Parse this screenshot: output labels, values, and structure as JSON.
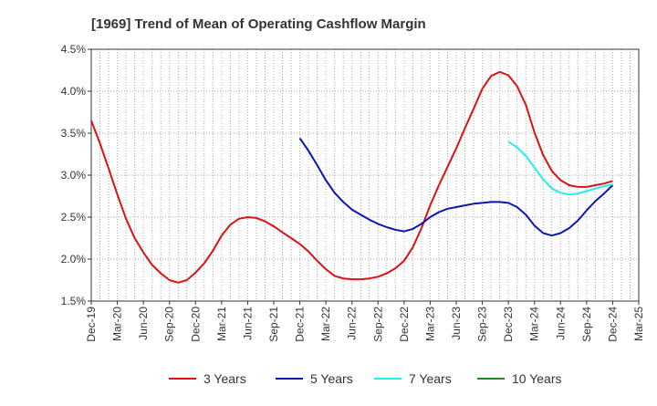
{
  "chart_data": {
    "type": "line",
    "title": "[1969]  Trend of Mean of Operating Cashflow Margin",
    "xlabel": "",
    "ylabel": "",
    "ylim": [
      1.5,
      4.5
    ],
    "y_ticks": [
      "1.5%",
      "2.0%",
      "2.5%",
      "3.0%",
      "3.5%",
      "4.0%",
      "4.5%"
    ],
    "x_ticks": [
      "Dec-19",
      "Mar-20",
      "Jun-20",
      "Sep-20",
      "Dec-20",
      "Mar-21",
      "Jun-21",
      "Sep-21",
      "Dec-21",
      "Mar-22",
      "Jun-22",
      "Sep-22",
      "Dec-22",
      "Mar-23",
      "Jun-23",
      "Sep-23",
      "Dec-23",
      "Mar-24",
      "Jun-24",
      "Sep-24",
      "Dec-24",
      "Mar-25"
    ],
    "grid": true,
    "legend_position": "bottom",
    "series": [
      {
        "name": "3 Years",
        "color": "#dd1111",
        "points": [
          [
            "Dec-19",
            3.65
          ],
          [
            "Jan-20",
            3.38
          ],
          [
            "Feb-20",
            3.08
          ],
          [
            "Mar-20",
            2.77
          ],
          [
            "Apr-20",
            2.48
          ],
          [
            "May-20",
            2.25
          ],
          [
            "Jun-20",
            2.08
          ],
          [
            "Jul-20",
            1.93
          ],
          [
            "Aug-20",
            1.83
          ],
          [
            "Sep-20",
            1.75
          ],
          [
            "Oct-20",
            1.72
          ],
          [
            "Nov-20",
            1.75
          ],
          [
            "Dec-20",
            1.84
          ],
          [
            "Jan-21",
            1.95
          ],
          [
            "Feb-21",
            2.1
          ],
          [
            "Mar-21",
            2.28
          ],
          [
            "Apr-21",
            2.41
          ],
          [
            "May-21",
            2.48
          ],
          [
            "Jun-21",
            2.5
          ],
          [
            "Jul-21",
            2.49
          ],
          [
            "Aug-21",
            2.45
          ],
          [
            "Sep-21",
            2.39
          ],
          [
            "Oct-21",
            2.32
          ],
          [
            "Nov-21",
            2.25
          ],
          [
            "Dec-21",
            2.18
          ],
          [
            "Jan-22",
            2.09
          ],
          [
            "Feb-22",
            1.98
          ],
          [
            "Mar-22",
            1.88
          ],
          [
            "Apr-22",
            1.8
          ],
          [
            "May-22",
            1.77
          ],
          [
            "Jun-22",
            1.76
          ],
          [
            "Jul-22",
            1.76
          ],
          [
            "Aug-22",
            1.77
          ],
          [
            "Sep-22",
            1.79
          ],
          [
            "Oct-22",
            1.83
          ],
          [
            "Nov-22",
            1.89
          ],
          [
            "Dec-22",
            1.98
          ],
          [
            "Jan-23",
            2.14
          ],
          [
            "Feb-23",
            2.37
          ],
          [
            "Mar-23",
            2.64
          ],
          [
            "Apr-23",
            2.88
          ],
          [
            "May-23",
            3.1
          ],
          [
            "Jun-23",
            3.32
          ],
          [
            "Jul-23",
            3.56
          ],
          [
            "Aug-23",
            3.79
          ],
          [
            "Sep-23",
            4.03
          ],
          [
            "Oct-23",
            4.18
          ],
          [
            "Nov-23",
            4.23
          ],
          [
            "Dec-23",
            4.19
          ],
          [
            "Jan-24",
            4.06
          ],
          [
            "Feb-24",
            3.84
          ],
          [
            "Mar-24",
            3.51
          ],
          [
            "Apr-24",
            3.24
          ],
          [
            "May-24",
            3.05
          ],
          [
            "Jun-24",
            2.94
          ],
          [
            "Jul-24",
            2.88
          ],
          [
            "Aug-24",
            2.86
          ],
          [
            "Sep-24",
            2.86
          ],
          [
            "Oct-24",
            2.88
          ],
          [
            "Nov-24",
            2.9
          ],
          [
            "Dec-24",
            2.93
          ]
        ]
      },
      {
        "name": "5 Years",
        "color": "#0a17b0",
        "points": [
          [
            "Dec-21",
            3.44
          ],
          [
            "Jan-22",
            3.29
          ],
          [
            "Feb-22",
            3.12
          ],
          [
            "Mar-22",
            2.94
          ],
          [
            "Apr-22",
            2.79
          ],
          [
            "May-22",
            2.68
          ],
          [
            "Jun-22",
            2.59
          ],
          [
            "Jul-22",
            2.53
          ],
          [
            "Aug-22",
            2.47
          ],
          [
            "Sep-22",
            2.42
          ],
          [
            "Oct-22",
            2.38
          ],
          [
            "Nov-22",
            2.35
          ],
          [
            "Dec-22",
            2.33
          ],
          [
            "Jan-23",
            2.36
          ],
          [
            "Feb-23",
            2.42
          ],
          [
            "Mar-23",
            2.5
          ],
          [
            "Apr-23",
            2.56
          ],
          [
            "May-23",
            2.6
          ],
          [
            "Jun-23",
            2.62
          ],
          [
            "Jul-23",
            2.64
          ],
          [
            "Aug-23",
            2.66
          ],
          [
            "Sep-23",
            2.67
          ],
          [
            "Oct-23",
            2.68
          ],
          [
            "Nov-23",
            2.68
          ],
          [
            "Dec-23",
            2.67
          ],
          [
            "Jan-24",
            2.62
          ],
          [
            "Feb-24",
            2.53
          ],
          [
            "Mar-24",
            2.4
          ],
          [
            "Apr-24",
            2.31
          ],
          [
            "May-24",
            2.28
          ],
          [
            "Jun-24",
            2.31
          ],
          [
            "Jul-24",
            2.37
          ],
          [
            "Aug-24",
            2.46
          ],
          [
            "Sep-24",
            2.58
          ],
          [
            "Oct-24",
            2.69
          ],
          [
            "Nov-24",
            2.78
          ],
          [
            "Dec-24",
            2.88
          ]
        ]
      },
      {
        "name": "7 Years",
        "color": "#22eeee",
        "points": [
          [
            "Dec-23",
            3.4
          ],
          [
            "Jan-24",
            3.33
          ],
          [
            "Feb-24",
            3.23
          ],
          [
            "Mar-24",
            3.09
          ],
          [
            "Apr-24",
            2.95
          ],
          [
            "May-24",
            2.84
          ],
          [
            "Jun-24",
            2.79
          ],
          [
            "Jul-24",
            2.77
          ],
          [
            "Aug-24",
            2.78
          ],
          [
            "Sep-24",
            2.81
          ],
          [
            "Oct-24",
            2.84
          ],
          [
            "Nov-24",
            2.87
          ],
          [
            "Dec-24",
            2.89
          ]
        ]
      },
      {
        "name": "10 Years",
        "color": "#1e8a1e",
        "points": []
      }
    ]
  }
}
